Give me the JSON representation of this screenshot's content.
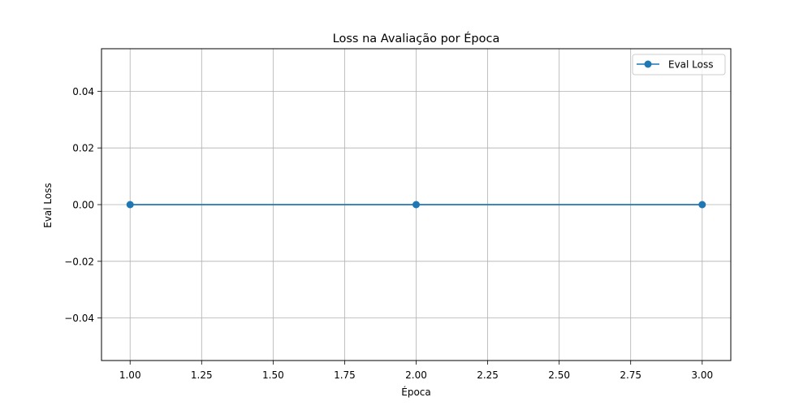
{
  "chart_data": {
    "type": "line",
    "title": "Loss na Avaliação por Época",
    "xlabel": "Época",
    "ylabel": "Eval Loss",
    "xlim": [
      0.9,
      3.1
    ],
    "ylim": [
      -0.055,
      0.055
    ],
    "x_ticks": [
      1.0,
      1.25,
      1.5,
      1.75,
      2.0,
      2.25,
      2.5,
      2.75,
      3.0
    ],
    "x_tick_labels": [
      "1.00",
      "1.25",
      "1.50",
      "1.75",
      "2.00",
      "2.25",
      "2.50",
      "2.75",
      "3.00"
    ],
    "y_ticks": [
      -0.04,
      -0.02,
      0.0,
      0.02,
      0.04
    ],
    "y_tick_labels": [
      "−0.04",
      "−0.02",
      "0.00",
      "0.02",
      "0.04"
    ],
    "grid": true,
    "legend_position": "top-right",
    "series": [
      {
        "name": "Eval Loss",
        "x": [
          1,
          2,
          3
        ],
        "values": [
          0.0,
          0.0,
          0.0
        ],
        "color": "#1f77b4",
        "marker": "circle"
      }
    ]
  }
}
